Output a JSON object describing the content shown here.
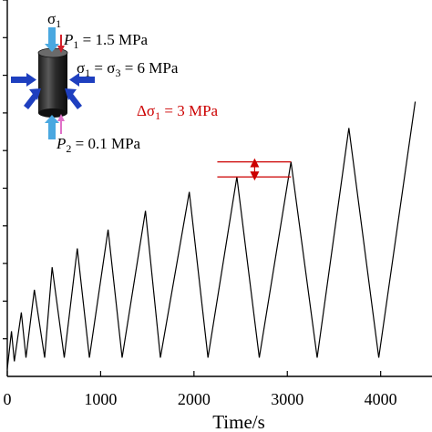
{
  "chart_data": {
    "type": "line",
    "xlabel": "Time/s",
    "xlim": [
      0,
      4550
    ],
    "ylim": [
      0,
      100
    ],
    "x_ticks": [
      0,
      1000,
      2000,
      3000,
      4000
    ],
    "x_tick_labels": [
      "0",
      "1000",
      "2000",
      "3000",
      "4000"
    ],
    "y_ticks": [
      10,
      20,
      30,
      40,
      50,
      60,
      70,
      80,
      90,
      100
    ],
    "series": [
      {
        "color": "#000000",
        "points": [
          [
            0,
            2
          ],
          [
            45,
            12
          ],
          [
            75,
            4
          ],
          [
            150,
            17
          ],
          [
            200,
            5
          ],
          [
            290,
            23
          ],
          [
            400,
            5
          ],
          [
            480,
            29
          ],
          [
            610,
            5
          ],
          [
            750,
            34
          ],
          [
            880,
            5
          ],
          [
            1080,
            39
          ],
          [
            1230,
            5
          ],
          [
            1480,
            44
          ],
          [
            1640,
            5
          ],
          [
            1950,
            49
          ],
          [
            2150,
            5
          ],
          [
            2460,
            53
          ],
          [
            2700,
            5
          ],
          [
            3040,
            57
          ],
          [
            3320,
            5
          ],
          [
            3660,
            66
          ],
          [
            3980,
            5
          ],
          [
            4370,
            73
          ]
        ]
      }
    ],
    "inset": {
      "sigma1_symbol": "σ",
      "sigma1_sub": "1",
      "p1_symbol": "P",
      "p1_sub": "1",
      "p1_value": " = 1.5 MPa",
      "confining_a": "σ",
      "confining_a_sub": "1",
      "confining_eq1": " = σ",
      "confining_b_sub": "3",
      "confining_eq2": " = 6 MPa",
      "p2_symbol": "P",
      "p2_sub": "2",
      "p2_value": " = 0.1 MPa"
    },
    "annotation": {
      "delta": "Δσ",
      "delta_sub": "1",
      "delta_value": " = 3 MPa",
      "color": "#cc0000",
      "from_y": 53,
      "to_y": 57
    },
    "colors": {
      "blue_arrow": "#1e3fbf",
      "light_blue_arrow": "#4aa8e0",
      "red_arrow": "#d4202a",
      "pink_arrow": "#e070c8"
    }
  }
}
